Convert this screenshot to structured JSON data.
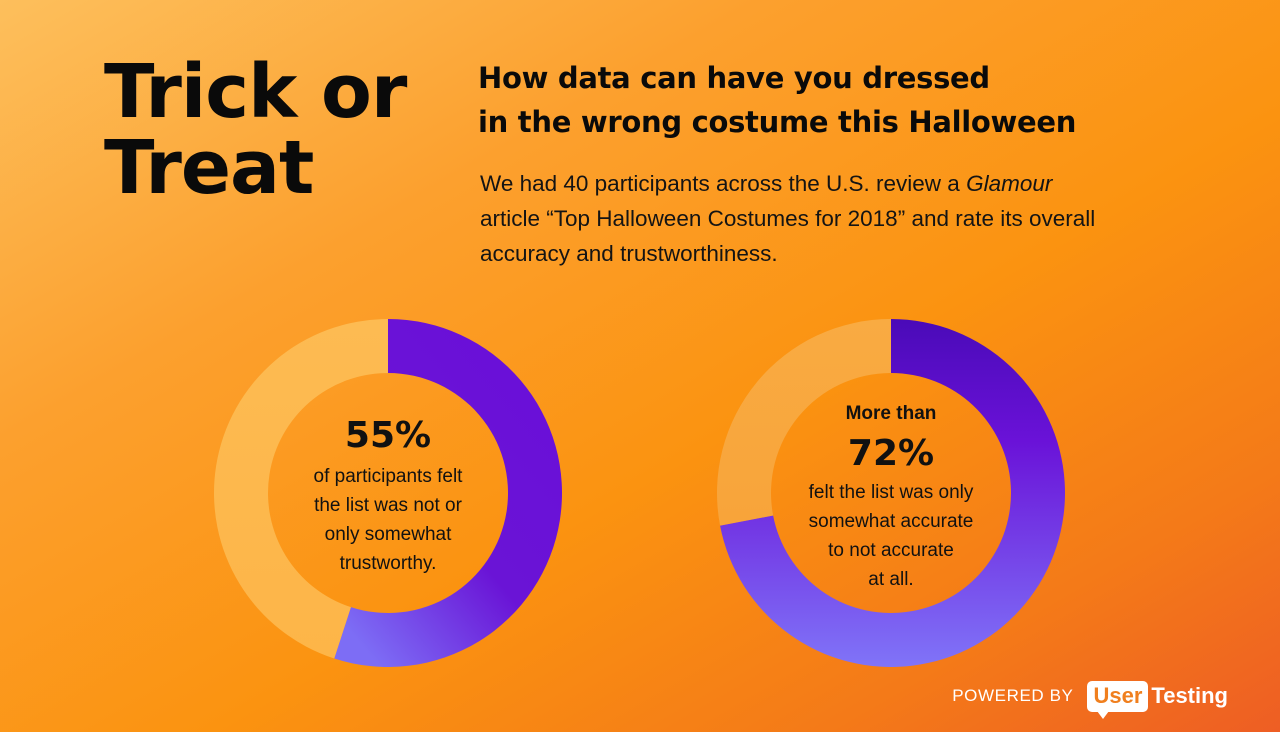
{
  "header": {
    "title_lines": [
      "Trick or",
      "Treat"
    ],
    "subtitle_lines": [
      "How data can have you dressed",
      "in the wrong costume this Halloween"
    ],
    "intro": {
      "line1_prefix": "We had 40 participants across the U.S. review a ",
      "line1_italic": "Glamour",
      "line2": "article “Top Halloween Costumes for 2018” and rate its overall",
      "line3": "accuracy and trustworthiness."
    }
  },
  "footer": {
    "powered_by": "POWERED BY",
    "logo_box": "User",
    "logo_text": "Testing"
  },
  "colors": {
    "bg_light": "#fdbf5c",
    "bg_dark": "#ee5e24",
    "purple": "#6a0fd8",
    "purple_light": "#7a6af5",
    "remainder": "#fdb94e",
    "remainder_2": "#f9a83c",
    "text": "#0a0a0a"
  },
  "chart_data": [
    {
      "type": "pie",
      "donut": true,
      "labels": [
        "felt the list was not or only somewhat trustworthy",
        ""
      ],
      "values": [
        55,
        45
      ],
      "center": {
        "value_label": "55%",
        "lines": [
          "of participants felt",
          "the list was not or",
          "only somewhat",
          "trustworthy."
        ]
      }
    },
    {
      "type": "pie",
      "donut": true,
      "labels": [
        "felt the list was only somewhat accurate to not accurate at all",
        ""
      ],
      "values": [
        72,
        28
      ],
      "center": {
        "pre_label": "More than",
        "value_label": "72%",
        "lines": [
          "felt the list was only",
          "somewhat accurate",
          "to not accurate",
          "at all."
        ]
      }
    }
  ]
}
